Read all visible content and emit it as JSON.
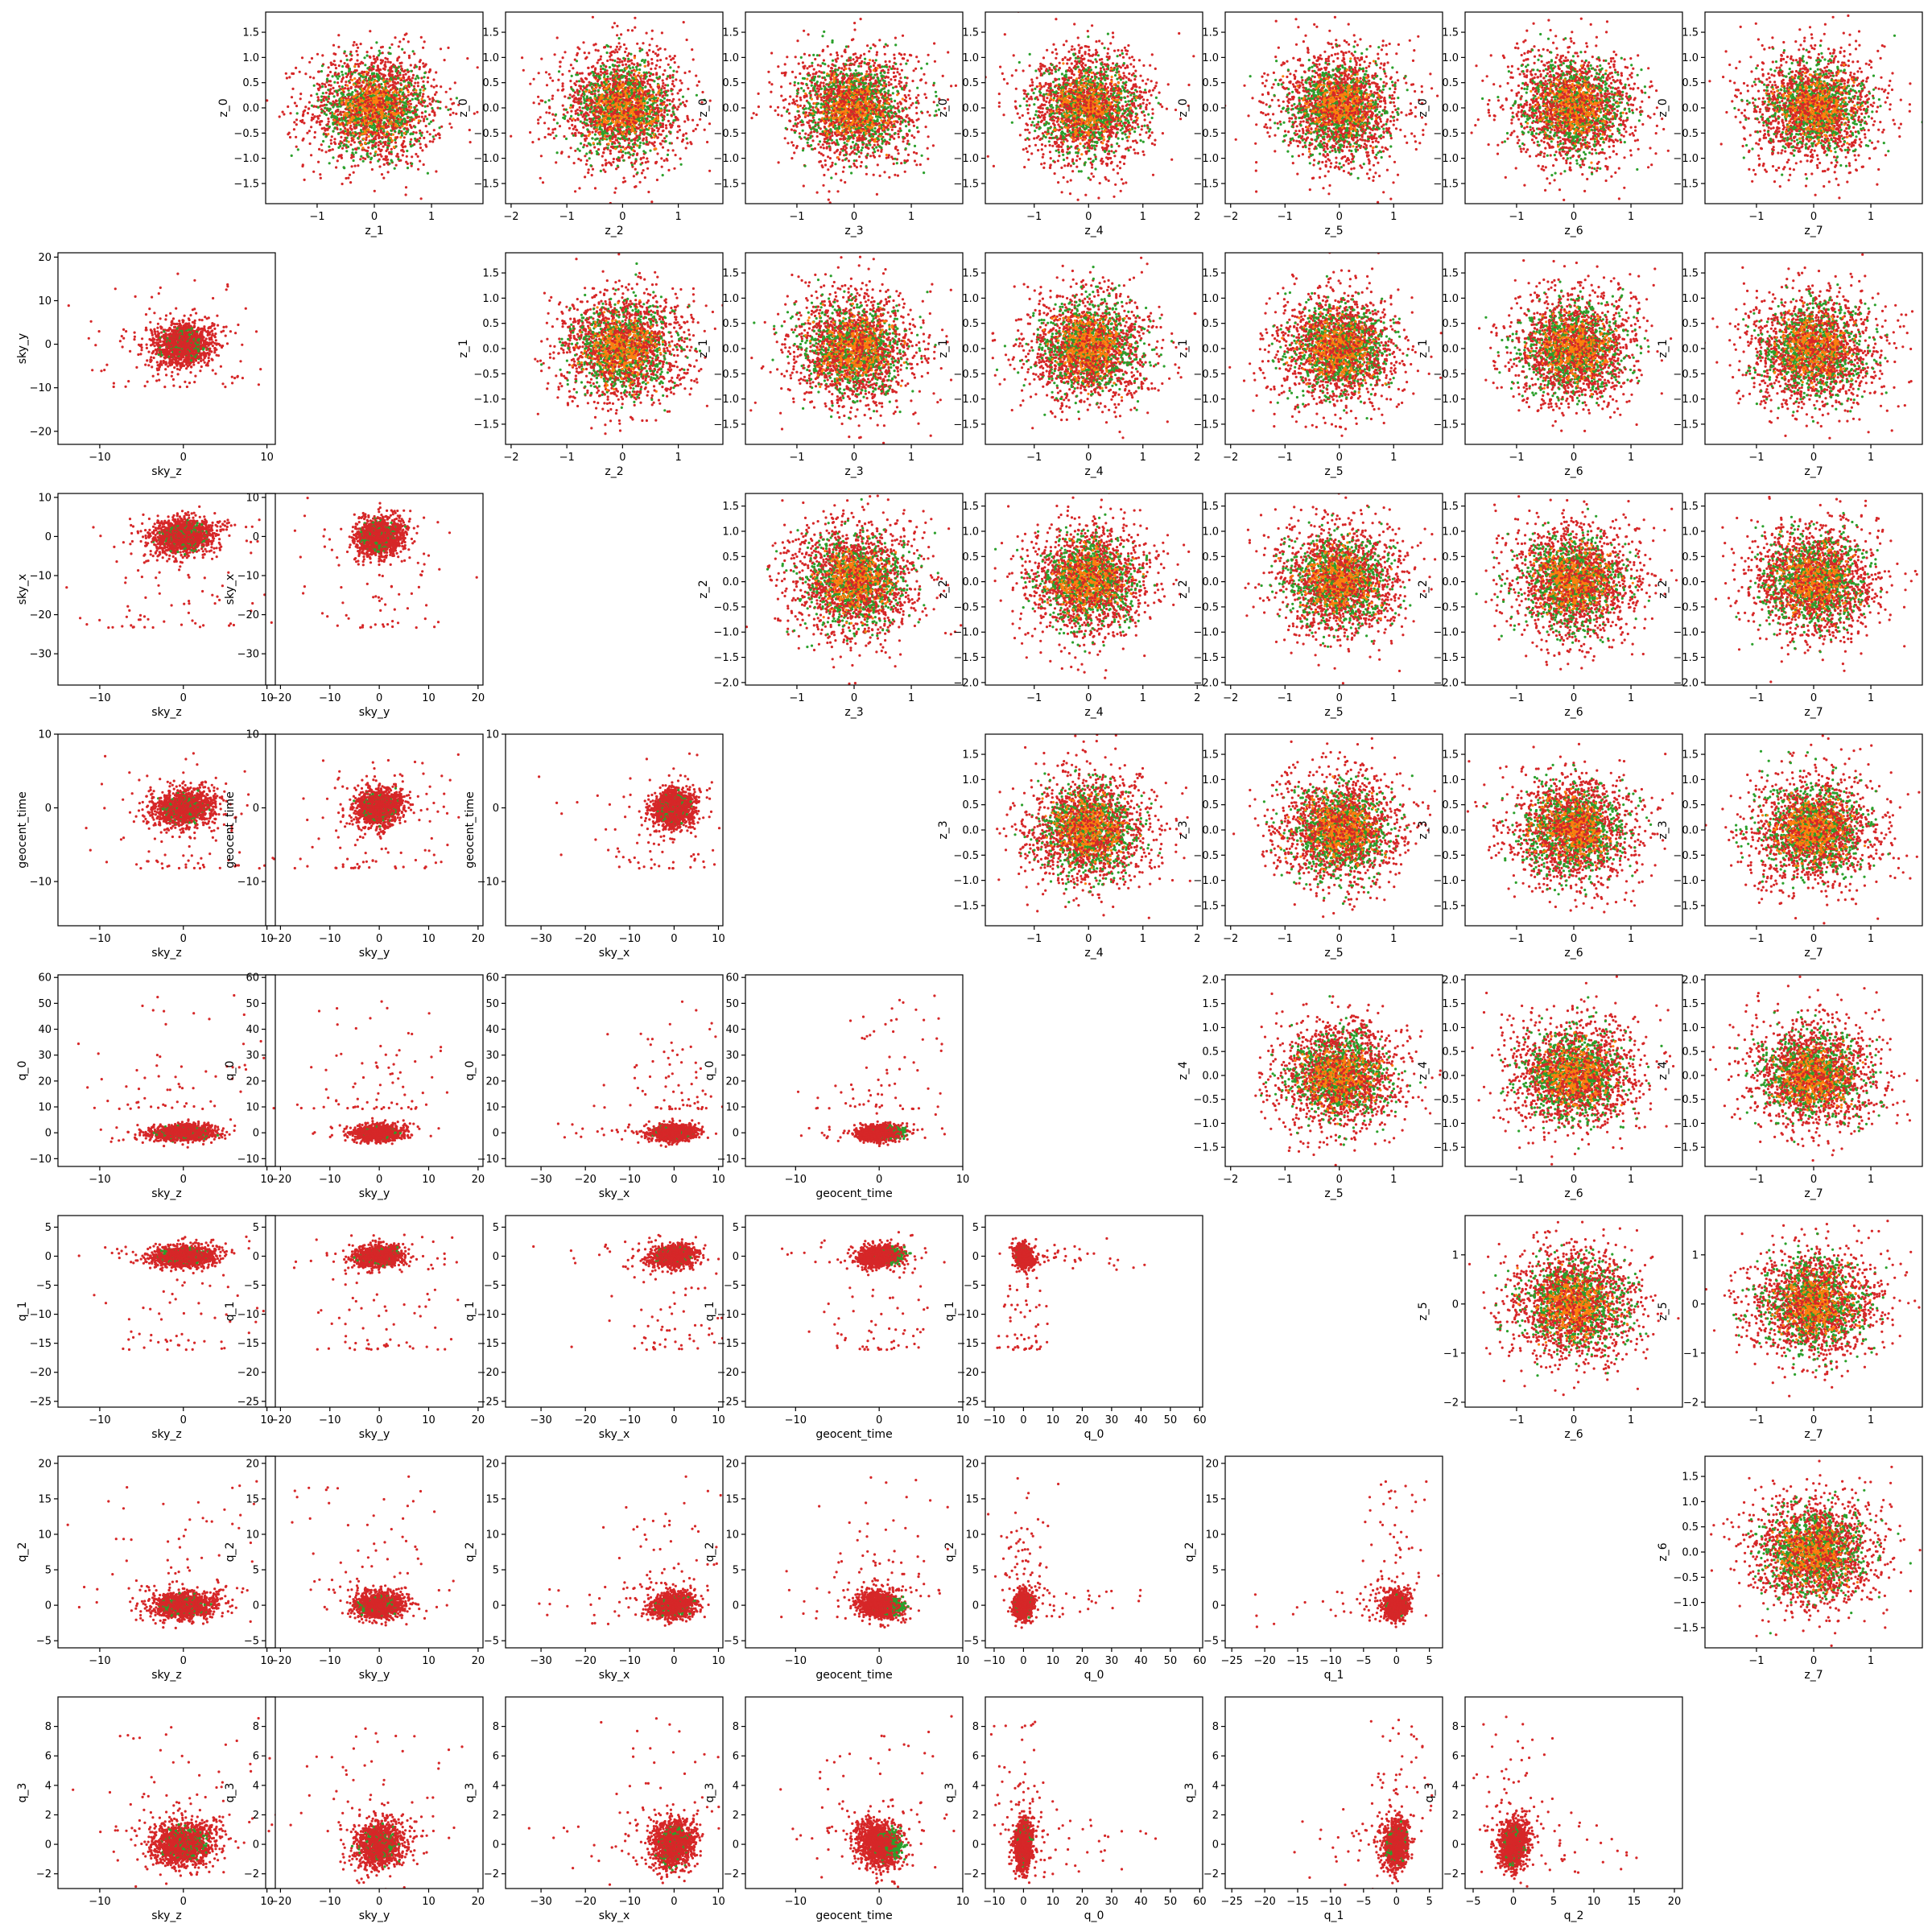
{
  "chart_data": {
    "type": "scatter",
    "title": "",
    "layout": "corner-plot grid",
    "grid": false,
    "legend": "none",
    "colors": {
      "red": "#d62728",
      "green": "#2ca02c",
      "orange": "#ff7f0e"
    },
    "variables": {
      "sky_z": {
        "range": [
          -15,
          11
        ],
        "ticks": [
          -10,
          0,
          10
        ]
      },
      "sky_y": {
        "range": [
          -23,
          21
        ],
        "ticks": [
          -20,
          -10,
          0,
          10,
          20
        ]
      },
      "sky_x": {
        "range": [
          -38,
          11
        ],
        "ticks": [
          -30,
          -20,
          -10,
          0,
          10
        ]
      },
      "geocent_time": {
        "range": [
          -16,
          10
        ],
        "ticks": [
          -10,
          0,
          10
        ]
      },
      "q_0": {
        "range": [
          -13,
          61
        ],
        "ticks": [
          -10,
          0,
          10,
          20,
          30,
          40,
          50,
          60
        ]
      },
      "q_1": {
        "range": [
          -26,
          7
        ],
        "ticks": [
          -25,
          -20,
          -15,
          -10,
          -5,
          0,
          5
        ]
      },
      "q_2": {
        "range": [
          -6,
          21
        ],
        "ticks": [
          -5,
          0,
          5,
          10,
          15,
          20
        ]
      },
      "q_3": {
        "range": [
          -3,
          10
        ],
        "ticks": [
          -2,
          0,
          2,
          4,
          6,
          8
        ]
      },
      "z_0": {
        "range": [
          -1.9,
          1.9
        ],
        "ticks": [
          -1.5,
          -1.0,
          -0.5,
          0.0,
          0.5,
          1.0,
          1.5
        ]
      },
      "z_1": {
        "range": [
          -1.9,
          1.9
        ],
        "ticks": [
          -1,
          0,
          1
        ]
      },
      "z_2": {
        "range": [
          -2.1,
          1.8
        ],
        "ticks": [
          -2,
          -1,
          0,
          1
        ]
      },
      "z_3": {
        "range": [
          -1.9,
          1.9
        ],
        "ticks": [
          -1,
          0,
          1
        ]
      },
      "z_4": {
        "range": [
          -1.9,
          2.1
        ],
        "ticks": [
          -1,
          0,
          1,
          2
        ]
      },
      "z_5": {
        "range": [
          -2.1,
          1.9
        ],
        "ticks": [
          -2,
          -1,
          0,
          1
        ]
      },
      "z_6": {
        "range": [
          -1.9,
          1.9
        ],
        "ticks": [
          -1,
          0,
          1
        ]
      },
      "z_7": {
        "range": [
          -1.9,
          1.9
        ],
        "ticks": [
          -1,
          0,
          1
        ]
      }
    },
    "yticks_override": {
      "z_0": [
        -1.5,
        -1.0,
        -0.5,
        0.0,
        0.5,
        1.0,
        1.5
      ],
      "z_1": [
        -1.5,
        -1.0,
        -0.5,
        0.0,
        0.5,
        1.0,
        1.5
      ],
      "z_2": [
        -2.0,
        -1.5,
        -1.0,
        -0.5,
        0.0,
        0.5,
        1.0,
        1.5
      ],
      "z_3": [
        -1.5,
        -1.0,
        -0.5,
        0.0,
        0.5,
        1.0,
        1.5
      ],
      "z_4": [
        -1.5,
        -1.0,
        -0.5,
        0.0,
        0.5,
        1.0,
        1.5,
        2.0
      ],
      "z_5": [
        -2,
        -1,
        0,
        1
      ],
      "z_6": [
        -1.5,
        -1.0,
        -0.5,
        0.0,
        0.5,
        1.0,
        1.5
      ]
    },
    "yranges_override": {
      "z_2": [
        -2.05,
        1.75
      ],
      "z_4": [
        -1.9,
        2.1
      ],
      "z_5": [
        -2.1,
        1.8
      ]
    },
    "lower_panels": [
      {
        "x": "sky_z",
        "y": "sky_y",
        "row": 1,
        "col": 0
      },
      {
        "x": "sky_z",
        "y": "sky_x",
        "row": 2,
        "col": 0
      },
      {
        "x": "sky_y",
        "y": "sky_x",
        "row": 2,
        "col": 1
      },
      {
        "x": "sky_z",
        "y": "geocent_time",
        "row": 3,
        "col": 0
      },
      {
        "x": "sky_y",
        "y": "geocent_time",
        "row": 3,
        "col": 1
      },
      {
        "x": "sky_x",
        "y": "geocent_time",
        "row": 3,
        "col": 2
      },
      {
        "x": "sky_z",
        "y": "q_0",
        "row": 4,
        "col": 0
      },
      {
        "x": "sky_y",
        "y": "q_0",
        "row": 4,
        "col": 1
      },
      {
        "x": "sky_x",
        "y": "q_0",
        "row": 4,
        "col": 2
      },
      {
        "x": "geocent_time",
        "y": "q_0",
        "row": 4,
        "col": 3
      },
      {
        "x": "sky_z",
        "y": "q_1",
        "row": 5,
        "col": 0
      },
      {
        "x": "sky_y",
        "y": "q_1",
        "row": 5,
        "col": 1
      },
      {
        "x": "sky_x",
        "y": "q_1",
        "row": 5,
        "col": 2
      },
      {
        "x": "geocent_time",
        "y": "q_1",
        "row": 5,
        "col": 3
      },
      {
        "x": "q_0",
        "y": "q_1",
        "row": 5,
        "col": 4
      },
      {
        "x": "sky_z",
        "y": "q_2",
        "row": 6,
        "col": 0
      },
      {
        "x": "sky_y",
        "y": "q_2",
        "row": 6,
        "col": 1
      },
      {
        "x": "sky_x",
        "y": "q_2",
        "row": 6,
        "col": 2
      },
      {
        "x": "geocent_time",
        "y": "q_2",
        "row": 6,
        "col": 3
      },
      {
        "x": "q_0",
        "y": "q_2",
        "row": 6,
        "col": 4
      },
      {
        "x": "q_1",
        "y": "q_2",
        "row": 6,
        "col": 5
      },
      {
        "x": "sky_z",
        "y": "q_3",
        "row": 7,
        "col": 0
      },
      {
        "x": "sky_y",
        "y": "q_3",
        "row": 7,
        "col": 1
      },
      {
        "x": "sky_x",
        "y": "q_3",
        "row": 7,
        "col": 2
      },
      {
        "x": "geocent_time",
        "y": "q_3",
        "row": 7,
        "col": 3
      },
      {
        "x": "q_0",
        "y": "q_3",
        "row": 7,
        "col": 4
      },
      {
        "x": "q_1",
        "y": "q_3",
        "row": 7,
        "col": 5
      },
      {
        "x": "q_2",
        "y": "q_3",
        "row": 7,
        "col": 6
      }
    ],
    "upper_panels": [
      {
        "x": "z_1",
        "y": "z_0",
        "row": 0,
        "col": 1
      },
      {
        "x": "z_2",
        "y": "z_0",
        "row": 0,
        "col": 2
      },
      {
        "x": "z_3",
        "y": "z_0",
        "row": 0,
        "col": 3
      },
      {
        "x": "z_4",
        "y": "z_0",
        "row": 0,
        "col": 4
      },
      {
        "x": "z_5",
        "y": "z_0",
        "row": 0,
        "col": 5
      },
      {
        "x": "z_6",
        "y": "z_0",
        "row": 0,
        "col": 6
      },
      {
        "x": "z_7",
        "y": "z_0",
        "row": 0,
        "col": 7
      },
      {
        "x": "z_2",
        "y": "z_1",
        "row": 1,
        "col": 2
      },
      {
        "x": "z_3",
        "y": "z_1",
        "row": 1,
        "col": 3
      },
      {
        "x": "z_4",
        "y": "z_1",
        "row": 1,
        "col": 4
      },
      {
        "x": "z_5",
        "y": "z_1",
        "row": 1,
        "col": 5
      },
      {
        "x": "z_6",
        "y": "z_1",
        "row": 1,
        "col": 6
      },
      {
        "x": "z_7",
        "y": "z_1",
        "row": 1,
        "col": 7
      },
      {
        "x": "z_3",
        "y": "z_2",
        "row": 2,
        "col": 3
      },
      {
        "x": "z_4",
        "y": "z_2",
        "row": 2,
        "col": 4
      },
      {
        "x": "z_5",
        "y": "z_2",
        "row": 2,
        "col": 5
      },
      {
        "x": "z_6",
        "y": "z_2",
        "row": 2,
        "col": 6
      },
      {
        "x": "z_7",
        "y": "z_2",
        "row": 2,
        "col": 7
      },
      {
        "x": "z_4",
        "y": "z_3",
        "row": 3,
        "col": 4
      },
      {
        "x": "z_5",
        "y": "z_3",
        "row": 3,
        "col": 5
      },
      {
        "x": "z_6",
        "y": "z_3",
        "row": 3,
        "col": 6
      },
      {
        "x": "z_7",
        "y": "z_3",
        "row": 3,
        "col": 7
      },
      {
        "x": "z_5",
        "y": "z_4",
        "row": 4,
        "col": 5
      },
      {
        "x": "z_6",
        "y": "z_4",
        "row": 4,
        "col": 6
      },
      {
        "x": "z_7",
        "y": "z_4",
        "row": 4,
        "col": 7
      },
      {
        "x": "z_6",
        "y": "z_5",
        "row": 5,
        "col": 6
      },
      {
        "x": "z_7",
        "y": "z_5",
        "row": 5,
        "col": 7
      },
      {
        "x": "z_7",
        "y": "z_6",
        "row": 6,
        "col": 7
      }
    ],
    "series_summary": {
      "upper": [
        {
          "color": "red",
          "distribution": "isotropic gaussian",
          "center": [
            0,
            0
          ],
          "std": 0.6,
          "count": 1200
        },
        {
          "color": "green",
          "distribution": "isotropic gaussian",
          "center": [
            0,
            0
          ],
          "std": 0.45,
          "count": 700
        },
        {
          "color": "orange",
          "distribution": "isotropic gaussian",
          "center": [
            0,
            0
          ],
          "std": 0.3,
          "count": 350
        }
      ],
      "lower_core": {
        "color": "red",
        "center": [
          0,
          0
        ],
        "approx_std": {
          "sky_z": 2,
          "sky_y": 2.5,
          "sky_x": 2.5,
          "geocent_time": 1.3,
          "q_0": 1.5,
          "q_1": 0.9,
          "q_2": 0.9,
          "q_3": 0.8
        },
        "count": 900
      },
      "lower_green": {
        "color": "green",
        "count": 220
      }
    }
  }
}
